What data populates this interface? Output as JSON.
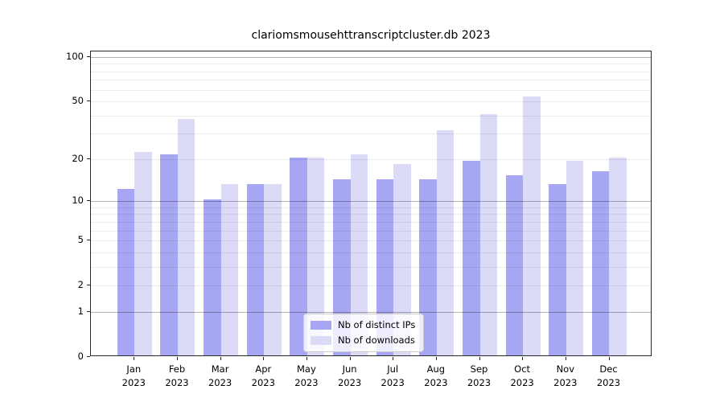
{
  "title": "clariomsmousehttranscriptcluster.db 2023",
  "chart_data": {
    "type": "bar",
    "title": "clariomsmousehttranscriptcluster.db 2023",
    "categories": [
      "Jan",
      "Feb",
      "Mar",
      "Apr",
      "May",
      "Jun",
      "Jul",
      "Aug",
      "Sep",
      "Oct",
      "Nov",
      "Dec"
    ],
    "year_label": "2023",
    "series": [
      {
        "name": "Nb of distinct IPs",
        "color": "#a6a6f2",
        "values": [
          12,
          21,
          10,
          13,
          20,
          14,
          14,
          14,
          19,
          15,
          13,
          16
        ]
      },
      {
        "name": "Nb of downloads",
        "color": "#dbdbf8",
        "values": [
          22,
          37,
          13,
          13,
          20,
          21,
          18,
          31,
          40,
          53,
          19,
          20
        ]
      }
    ],
    "yscale": "log1p",
    "ylim": [
      0,
      109
    ],
    "yticks": [
      0,
      1,
      2,
      5,
      10,
      20,
      50,
      100
    ],
    "major_gridlines": [
      1,
      10,
      100
    ],
    "minor_gridlines": [
      2,
      3,
      4,
      5,
      6,
      7,
      8,
      9,
      20,
      30,
      40,
      50,
      60,
      70,
      80,
      90
    ],
    "grid": true,
    "legend_position": "lower center"
  }
}
